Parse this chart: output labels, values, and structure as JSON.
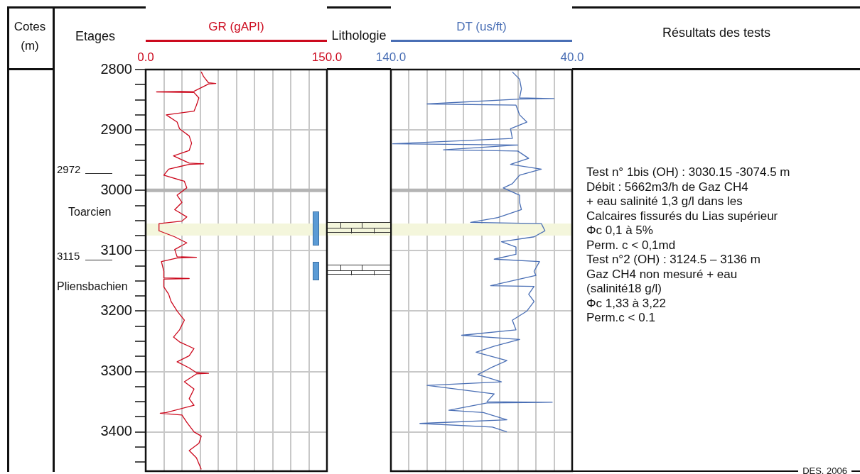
{
  "chart_data": [
    {
      "type": "line",
      "xlabel": "GR (gAPI)",
      "ylabel": "Cotes (m)",
      "grid": true,
      "legend": false,
      "marker": "none",
      "xlim": [
        0,
        150
      ],
      "xticks": [
        {
          "value": 0,
          "label": "0.0"
        },
        {
          "value": 15,
          "label": null
        },
        {
          "value": 30,
          "label": null
        },
        {
          "value": 45,
          "label": null
        },
        {
          "value": 60,
          "label": null
        },
        {
          "value": 75,
          "label": null
        },
        {
          "value": 90,
          "label": null
        },
        {
          "value": 105,
          "label": null
        },
        {
          "value": 120,
          "label": null
        },
        {
          "value": 135,
          "label": null
        },
        {
          "value": 150,
          "label": "150.0"
        }
      ],
      "ylim": [
        3465,
        2800
      ],
      "yticks": [
        2800,
        {
          "value": 2825,
          "label": null
        },
        {
          "value": 2850,
          "label": null
        },
        {
          "value": 2875,
          "label": null
        },
        2900,
        {
          "value": 2925,
          "label": null
        },
        {
          "value": 2950,
          "label": null
        },
        {
          "value": 2975,
          "label": null
        },
        3000,
        {
          "value": 3025,
          "label": null
        },
        {
          "value": 3050,
          "label": null
        },
        {
          "value": 3075,
          "label": null
        },
        3100,
        {
          "value": 3125,
          "label": null
        },
        {
          "value": 3150,
          "label": null
        },
        {
          "value": 3175,
          "label": null
        },
        3200,
        {
          "value": 3225,
          "label": null
        },
        {
          "value": 3250,
          "label": null
        },
        {
          "value": 3275,
          "label": null
        },
        3300,
        {
          "value": 3325,
          "label": null
        },
        {
          "value": 3350,
          "label": null
        },
        {
          "value": 3375,
          "label": null
        },
        3400,
        {
          "value": 3425,
          "label": null
        },
        {
          "value": 3450,
          "label": null
        }
      ],
      "ref_lines": [
        {
          "axis": "y",
          "value": 3000,
          "color": "#b4b4b4"
        }
      ],
      "bands": [
        {
          "axis": "y",
          "from": 3055,
          "to": 3075,
          "color": "#f4f6dc"
        }
      ],
      "annotations": [
        "Etages",
        "2972",
        "Toarcien",
        "3115",
        "Pliensbachien"
      ],
      "series": [
        {
          "color": "#cc0a1e",
          "x": [
            46,
            48,
            52,
            58,
            52,
            40,
            9,
            40,
            44,
            42,
            40,
            17,
            26,
            28,
            36,
            38,
            36,
            23,
            36,
            48,
            36,
            19,
            15,
            32,
            34,
            26,
            30,
            24,
            34,
            30,
            11,
            11,
            24,
            34,
            24,
            26,
            42,
            26,
            13,
            15,
            15,
            36,
            15,
            15,
            19,
            21,
            26,
            32,
            28,
            23,
            28,
            40,
            36,
            26,
            36,
            42,
            52,
            42,
            32,
            40,
            36,
            40,
            17,
            12,
            30,
            34,
            40,
            46,
            44,
            36,
            42,
            46
          ],
          "values": [
            2804,
            2812,
            2822,
            2823,
            2824,
            2836,
            2837,
            2838,
            2847,
            2859,
            2869,
            2875,
            2887,
            2898,
            2910,
            2922,
            2934,
            2943,
            2955,
            2956,
            2957,
            2965,
            2975,
            2985,
            2996,
            3008,
            3020,
            3032,
            3044,
            3051,
            3055,
            3067,
            3077,
            3087,
            3098,
            3110,
            3111,
            3112,
            3118,
            3134,
            3145,
            3146,
            3147,
            3160,
            3172,
            3184,
            3200,
            3215,
            3231,
            3243,
            3251,
            3262,
            3274,
            3284,
            3294,
            3302,
            3303,
            3304,
            3317,
            3329,
            3345,
            3356,
            3368,
            3369,
            3372,
            3384,
            3400,
            3407,
            3419,
            3431,
            3443,
            3462
          ]
        }
      ]
    },
    {
      "type": "other",
      "title": "Lithologie"
    },
    {
      "type": "line",
      "xlabel": "DT (us/ft)",
      "grid": true,
      "legend": false,
      "marker": "none",
      "tick_labels": "x",
      "xlim": [
        140,
        40
      ],
      "xticks": [
        {
          "value": 140,
          "label": "140.0"
        },
        {
          "value": 130,
          "label": null
        },
        {
          "value": 120,
          "label": null
        },
        {
          "value": 110,
          "label": null
        },
        {
          "value": 100,
          "label": null
        },
        {
          "value": 90,
          "label": null
        },
        {
          "value": 80,
          "label": null
        },
        {
          "value": 70,
          "label": null
        },
        {
          "value": 60,
          "label": null
        },
        {
          "value": 50,
          "label": null
        },
        {
          "value": 40,
          "label": "40.0"
        }
      ],
      "ylim": [
        3465,
        2800
      ],
      "yticks": [
        {
          "value": 2800,
          "label": null
        },
        {
          "value": 2900,
          "label": null
        },
        {
          "value": 3000,
          "label": null
        },
        {
          "value": 3100,
          "label": null
        },
        {
          "value": 3200,
          "label": null
        },
        {
          "value": 3300,
          "label": null
        },
        {
          "value": 3400,
          "label": null
        }
      ],
      "ref_lines": [
        {
          "axis": "y",
          "value": 3000,
          "color": "#b4b4b4"
        }
      ],
      "bands": [
        {
          "axis": "y",
          "from": 3055,
          "to": 3075,
          "color": "#f4f6dc"
        }
      ],
      "series": [
        {
          "color": "#4a6fb5",
          "x": [
            73,
            69,
            68,
            69,
            50,
            69,
            120,
            71,
            69,
            65,
            74,
            73,
            139,
            70,
            111,
            70,
            64,
            74,
            57,
            69,
            73,
            78,
            69,
            69,
            68,
            81,
            96,
            57,
            55,
            61,
            79,
            71,
            71,
            83,
            58,
            61,
            60,
            85,
            61,
            64,
            61,
            65,
            73,
            71,
            101,
            69,
            83,
            93,
            76,
            85,
            92,
            79,
            120,
            83,
            87,
            51,
            87,
            108,
            89,
            76,
            124,
            84,
            76
          ],
          "values": [
            2804,
            2816,
            2832,
            2847,
            2848,
            2849,
            2857,
            2859,
            2875,
            2887,
            2898,
            2914,
            2923,
            2925,
            2933,
            2935,
            2947,
            2957,
            2965,
            2975,
            2989,
            2996,
            3008,
            3020,
            3032,
            3045,
            3053,
            3055,
            3067,
            3077,
            3085,
            3094,
            3106,
            3114,
            3118,
            3134,
            3141,
            3158,
            3159,
            3172,
            3184,
            3200,
            3215,
            3231,
            3240,
            3247,
            3258,
            3268,
            3282,
            3294,
            3305,
            3317,
            3323,
            3337,
            3350,
            3351,
            3352,
            3364,
            3368,
            3380,
            3386,
            3392,
            3400
          ]
        }
      ]
    },
    {
      "type": "other",
      "title": "Résultats des tests",
      "annotations": [
        "Test n° 1bis (OH) : 3030.15 -3074.5 m",
        "Débit : 5662m3/h de Gaz CH4",
        "+ eau salinité 1,3 g/l dans les",
        "Calcaires fissurés du Lias supérieur",
        "Φc        0,1 à 5%",
        "Perm. c  < 0,1md",
        "Test n°2 (OH) : 3124.5 – 3136 m",
        "Gaz CH4 non mesuré + eau",
        "(salinité18 g/l)",
        "Φc          1,33 à 3,22",
        "Perm.c  < 0.1",
        "DES. 2006"
      ]
    }
  ]
}
